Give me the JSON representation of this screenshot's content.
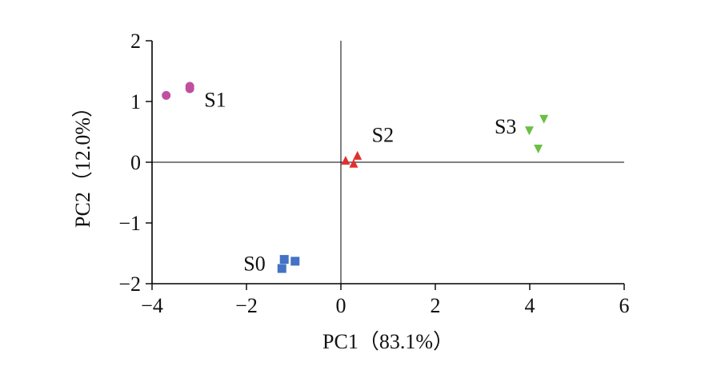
{
  "chart_data": {
    "type": "scatter",
    "xlabel": "PC1（83.1%）",
    "ylabel": "PC2（12.0%）",
    "xlim": [
      -4,
      6
    ],
    "ylim": [
      -2,
      2
    ],
    "xticks": [
      -4,
      -2,
      0,
      2,
      4,
      6
    ],
    "yticks": [
      -2,
      -1,
      0,
      1,
      2
    ],
    "xtick_labels": [
      "−4",
      "−2",
      "0",
      "2",
      "4",
      "6"
    ],
    "ytick_labels": [
      "−2",
      "−1",
      "0",
      "1",
      "2"
    ],
    "zero_lines": true,
    "series": [
      {
        "name": "S0",
        "marker": "square",
        "color": "#4472c4",
        "points": [
          [
            -1.2,
            -1.6
          ],
          [
            -0.97,
            -1.63
          ],
          [
            -1.25,
            -1.75
          ]
        ]
      },
      {
        "name": "S1",
        "marker": "circle",
        "color": "#c0509f",
        "points": [
          [
            -3.7,
            1.1
          ],
          [
            -3.2,
            1.25
          ],
          [
            -3.2,
            1.21
          ]
        ]
      },
      {
        "name": "S2",
        "marker": "triangle-up",
        "color": "#e03030",
        "points": [
          [
            0.1,
            0.02
          ],
          [
            0.35,
            0.1
          ],
          [
            0.27,
            -0.03
          ]
        ]
      },
      {
        "name": "S3",
        "marker": "triangle-down",
        "color": "#6abf45",
        "points": [
          [
            3.99,
            0.53
          ],
          [
            4.3,
            0.72
          ],
          [
            4.18,
            0.23
          ]
        ]
      }
    ]
  }
}
